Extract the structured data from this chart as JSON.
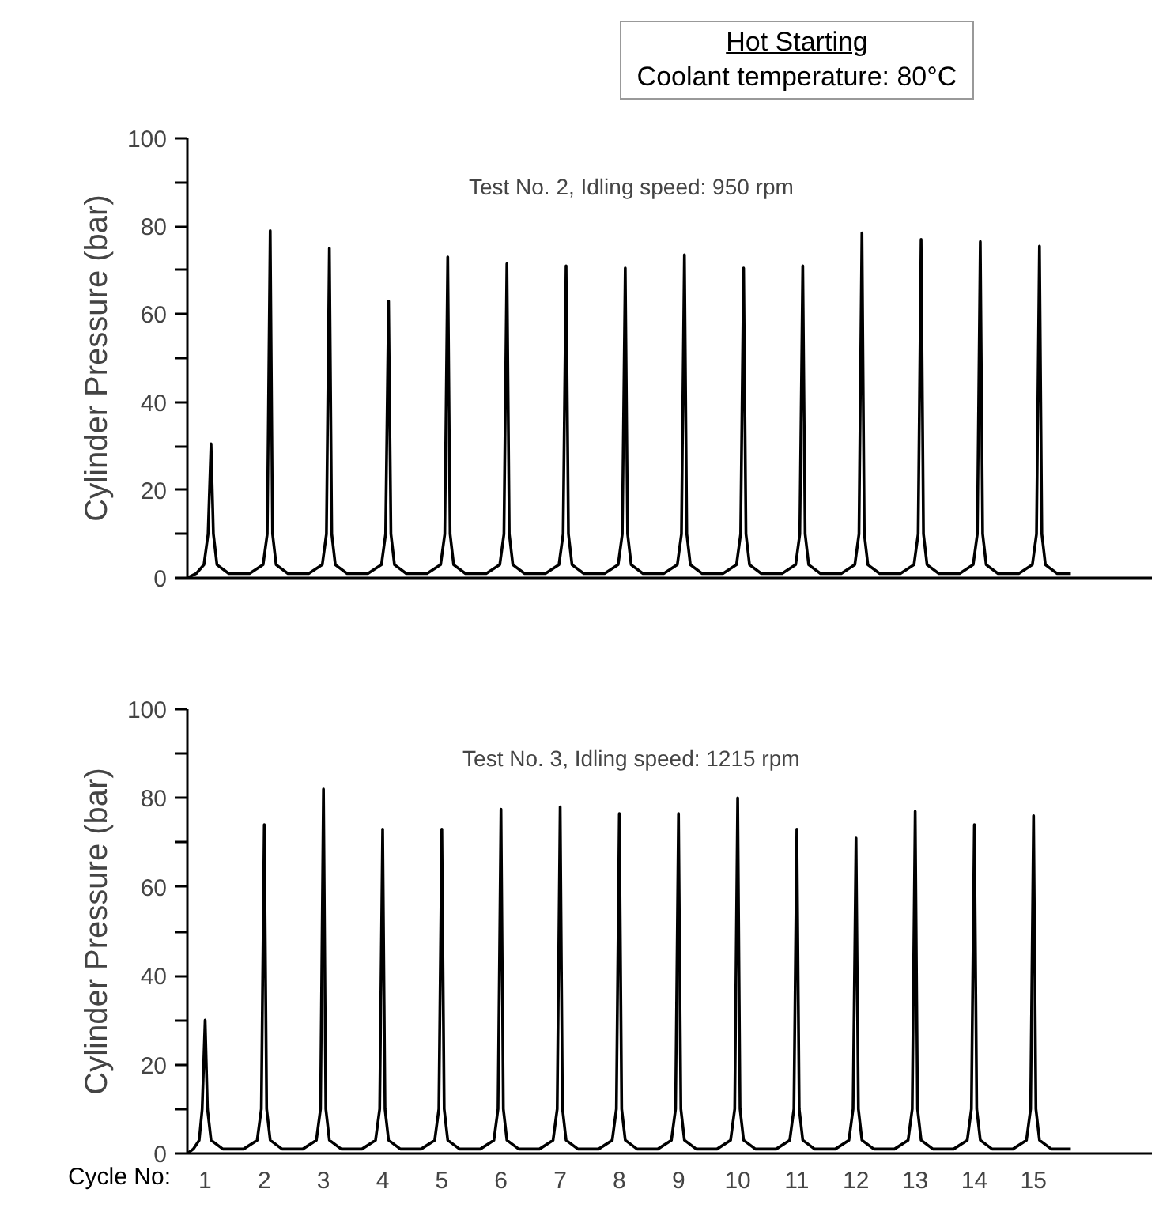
{
  "chart_data": [
    {
      "type": "line",
      "title": "Hot Starting",
      "subtitle": "Coolant temperature: 80°C",
      "ylabel": "Cylinder Pressure (bar)",
      "annotations": [
        "Test No. 2, Idling speed: 950 rpm"
      ],
      "xlim": [
        0.7,
        17.0
      ],
      "ylim": [
        0,
        100
      ],
      "xticks": [
        1,
        2,
        3,
        4,
        5,
        6,
        7,
        8,
        9,
        10,
        11,
        12,
        13,
        14,
        15
      ],
      "yticks": [
        0,
        {
          "value": 10,
          "label": null
        },
        20,
        {
          "value": 30,
          "label": null
        },
        40,
        {
          "value": 50,
          "label": null
        },
        60,
        {
          "value": 70,
          "label": null
        },
        80,
        {
          "value": 90,
          "label": null
        },
        100
      ],
      "tick_labels": "y",
      "grid": false,
      "marker": "none",
      "line_style": "solid",
      "series": [
        {
          "color": "#000000",
          "x": [
            0.7,
            0.85,
            0.98,
            1.05,
            1.1,
            1.14,
            1.2,
            1.4,
            1.75,
            1.98,
            2.05,
            2.1,
            2.14,
            2.2,
            2.4,
            2.75,
            2.98,
            3.05,
            3.1,
            3.14,
            3.2,
            3.4,
            3.75,
            3.98,
            4.05,
            4.1,
            4.14,
            4.2,
            4.4,
            4.75,
            4.98,
            5.05,
            5.1,
            5.14,
            5.2,
            5.4,
            5.75,
            5.98,
            6.05,
            6.1,
            6.14,
            6.2,
            6.4,
            6.75,
            6.98,
            7.05,
            7.1,
            7.14,
            7.2,
            7.4,
            7.75,
            7.98,
            8.05,
            8.1,
            8.14,
            8.2,
            8.4,
            8.75,
            8.98,
            9.05,
            9.1,
            9.14,
            9.2,
            9.4,
            9.75,
            9.98,
            10.05,
            10.1,
            10.14,
            10.2,
            10.4,
            10.75,
            10.98,
            11.05,
            11.1,
            11.14,
            11.2,
            11.4,
            11.75,
            11.98,
            12.05,
            12.1,
            12.14,
            12.2,
            12.4,
            12.75,
            12.98,
            13.05,
            13.1,
            13.14,
            13.2,
            13.4,
            13.75,
            13.98,
            14.05,
            14.1,
            14.14,
            14.2,
            14.4,
            14.75,
            14.98,
            15.05,
            15.1,
            15.14,
            15.2,
            15.4,
            15.63
          ],
          "values": [
            0,
            1,
            3,
            10,
            30.5,
            10,
            3,
            1,
            1,
            3,
            10,
            79,
            10,
            3,
            1,
            1,
            3,
            10,
            75,
            10,
            3,
            1,
            1,
            3,
            10,
            63,
            10,
            3,
            1,
            1,
            3,
            10,
            73,
            10,
            3,
            1,
            1,
            3,
            10,
            71.5,
            10,
            3,
            1,
            1,
            3,
            10,
            71,
            10,
            3,
            1,
            1,
            3,
            10,
            70.5,
            10,
            3,
            1,
            1,
            3,
            10,
            73.5,
            10,
            3,
            1,
            1,
            3,
            10,
            70.5,
            10,
            3,
            1,
            1,
            3,
            10,
            71,
            10,
            3,
            1,
            1,
            3,
            10,
            78.5,
            10,
            3,
            1,
            1,
            3,
            10,
            77,
            10,
            3,
            1,
            1,
            3,
            10,
            76.5,
            10,
            3,
            1,
            1,
            3,
            10,
            75.5,
            10,
            3,
            1,
            1
          ]
        }
      ]
    },
    {
      "type": "line",
      "xlabel": "Cycle No:",
      "ylabel": "Cylinder Pressure (bar)",
      "annotations": [
        "Test No. 3, Idling speed: 1215 rpm"
      ],
      "xlim": [
        0.7,
        17.0
      ],
      "ylim": [
        0,
        100
      ],
      "xticks": [
        1,
        2,
        3,
        4,
        5,
        6,
        7,
        8,
        9,
        10,
        11,
        12,
        13,
        14,
        15
      ],
      "yticks": [
        0,
        {
          "value": 10,
          "label": null
        },
        20,
        {
          "value": 30,
          "label": null
        },
        40,
        {
          "value": 50,
          "label": null
        },
        60,
        {
          "value": 70,
          "label": null
        },
        80,
        {
          "value": 90,
          "label": null
        },
        100
      ],
      "grid": false,
      "marker": "none",
      "line_style": "solid",
      "series": [
        {
          "color": "#000000",
          "x": [
            0.7,
            0.8,
            0.9,
            0.95,
            1,
            1.04,
            1.1,
            1.3,
            1.65,
            1.88,
            1.95,
            2,
            2.04,
            2.1,
            2.3,
            2.65,
            2.88,
            2.95,
            3,
            3.04,
            3.1,
            3.3,
            3.65,
            3.88,
            3.95,
            4,
            4.04,
            4.1,
            4.3,
            4.65,
            4.88,
            4.95,
            5,
            5.04,
            5.1,
            5.3,
            5.65,
            5.88,
            5.95,
            6,
            6.04,
            6.1,
            6.3,
            6.65,
            6.88,
            6.95,
            7,
            7.04,
            7.1,
            7.3,
            7.65,
            7.88,
            7.95,
            8,
            8.04,
            8.1,
            8.3,
            8.65,
            8.88,
            8.95,
            9,
            9.04,
            9.1,
            9.3,
            9.65,
            9.88,
            9.95,
            10,
            10.04,
            10.1,
            10.3,
            10.65,
            10.88,
            10.95,
            11,
            11.04,
            11.1,
            11.3,
            11.65,
            11.88,
            11.95,
            12,
            12.04,
            12.1,
            12.3,
            12.65,
            12.88,
            12.95,
            13,
            13.04,
            13.1,
            13.3,
            13.65,
            13.88,
            13.95,
            14,
            14.04,
            14.1,
            14.3,
            14.65,
            14.88,
            14.95,
            15,
            15.04,
            15.1,
            15.3,
            15.63
          ],
          "values": [
            0,
            1,
            3,
            10,
            30,
            10,
            3,
            1,
            1,
            3,
            10,
            74,
            10,
            3,
            1,
            1,
            3,
            10,
            82,
            10,
            3,
            1,
            1,
            3,
            10,
            73,
            10,
            3,
            1,
            1,
            3,
            10,
            73,
            10,
            3,
            1,
            1,
            3,
            10,
            77.5,
            10,
            3,
            1,
            1,
            3,
            10,
            78,
            10,
            3,
            1,
            1,
            3,
            10,
            76.5,
            10,
            3,
            1,
            1,
            3,
            10,
            76.5,
            10,
            3,
            1,
            1,
            3,
            10,
            80,
            10,
            3,
            1,
            1,
            3,
            10,
            73,
            10,
            3,
            1,
            1,
            3,
            10,
            71,
            10,
            3,
            1,
            1,
            3,
            10,
            77,
            10,
            3,
            1,
            1,
            3,
            10,
            74,
            10,
            3,
            1,
            1,
            3,
            10,
            76,
            10,
            3,
            1,
            1
          ]
        }
      ]
    }
  ]
}
